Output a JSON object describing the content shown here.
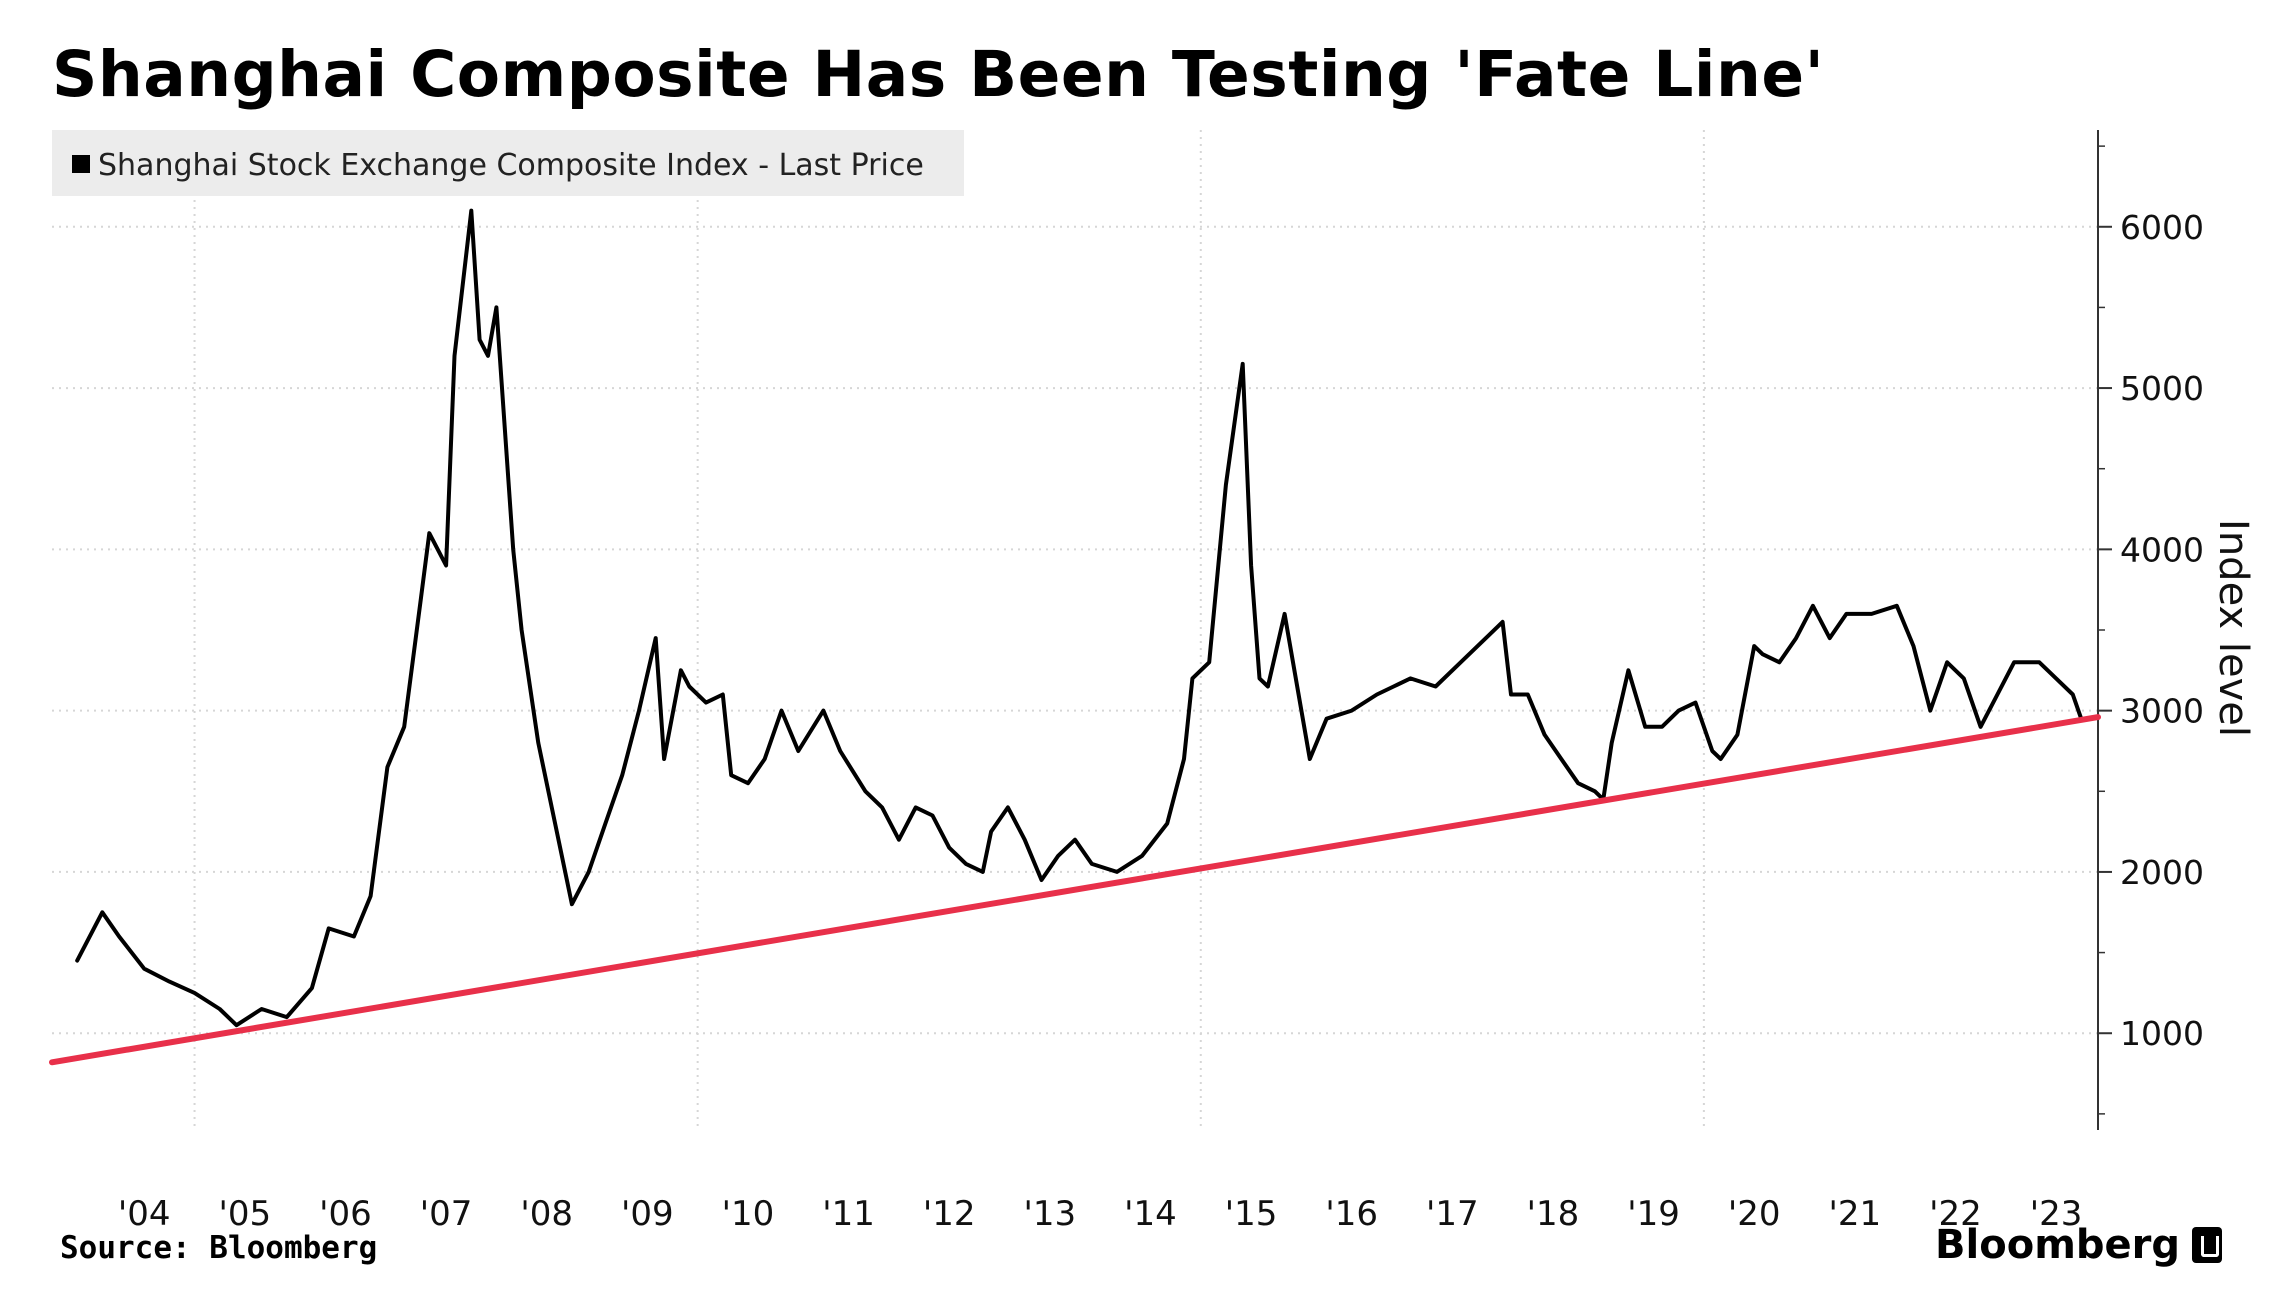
{
  "title": "Shanghai Composite Has Been Testing 'Fate Line'",
  "source": "Source: Bloomberg",
  "brand": "Bloomberg",
  "chart_data": {
    "type": "line",
    "title": "Shanghai Composite Has Been Testing 'Fate Line'",
    "ylabel": "Index level",
    "xlabel": "",
    "ylim": [
      400,
      6600
    ],
    "yticks": [
      1000,
      2000,
      3000,
      4000,
      5000,
      6000
    ],
    "xticks": [
      "'04",
      "'05",
      "'06",
      "'07",
      "'08",
      "'09",
      "'10",
      "'11",
      "'12",
      "'13",
      "'14",
      "'15",
      "'16",
      "'17",
      "'18",
      "'19",
      "'20",
      "'21",
      "'22",
      "'23"
    ],
    "legend": {
      "placement": "top-left",
      "entries": [
        "Shanghai Stock Exchange Composite Index - Last Price"
      ]
    },
    "grid": true,
    "series": [
      {
        "name": "Shanghai Stock Exchange Composite Index - Last Price",
        "color": "#000000",
        "x": [
          "2003-11",
          "2004-02",
          "2004-04",
          "2004-07",
          "2004-10",
          "2005-01",
          "2005-04",
          "2005-06",
          "2005-09",
          "2005-12",
          "2006-03",
          "2006-05",
          "2006-08",
          "2006-10",
          "2006-12",
          "2007-02",
          "2007-04",
          "2007-05",
          "2007-07",
          "2007-08",
          "2007-10",
          "2007-11",
          "2007-12",
          "2008-01",
          "2008-03",
          "2008-04",
          "2008-06",
          "2008-08",
          "2008-10",
          "2008-12",
          "2009-02",
          "2009-04",
          "2009-06",
          "2009-08",
          "2009-09",
          "2009-11",
          "2009-12",
          "2010-02",
          "2010-04",
          "2010-05",
          "2010-07",
          "2010-09",
          "2010-11",
          "2011-01",
          "2011-04",
          "2011-06",
          "2011-09",
          "2011-11",
          "2012-01",
          "2012-03",
          "2012-05",
          "2012-07",
          "2012-09",
          "2012-11",
          "2012-12",
          "2013-02",
          "2013-04",
          "2013-06",
          "2013-08",
          "2013-10",
          "2013-12",
          "2014-03",
          "2014-06",
          "2014-09",
          "2014-11",
          "2014-12",
          "2015-02",
          "2015-04",
          "2015-06",
          "2015-07",
          "2015-08",
          "2015-09",
          "2015-11",
          "2016-01",
          "2016-02",
          "2016-04",
          "2016-07",
          "2016-10",
          "2016-12",
          "2017-02",
          "2017-05",
          "2017-08",
          "2017-11",
          "2018-01",
          "2018-02",
          "2018-04",
          "2018-06",
          "2018-08",
          "2018-10",
          "2018-12",
          "2019-01",
          "2019-02",
          "2019-04",
          "2019-06",
          "2019-08",
          "2019-10",
          "2019-12",
          "2020-02",
          "2020-03",
          "2020-05",
          "2020-07",
          "2020-08",
          "2020-10",
          "2020-12",
          "2021-02",
          "2021-04",
          "2021-06",
          "2021-09",
          "2021-12",
          "2022-02",
          "2022-04",
          "2022-06",
          "2022-08",
          "2022-10",
          "2022-12",
          "2023-02",
          "2023-05",
          "2023-07",
          "2023-09",
          "2023-10"
        ],
        "values": [
          1450,
          1750,
          1600,
          1400,
          1320,
          1250,
          1150,
          1050,
          1150,
          1100,
          1280,
          1650,
          1600,
          1850,
          2650,
          2900,
          3700,
          4100,
          3900,
          5200,
          6100,
          5300,
          5200,
          5500,
          4000,
          3500,
          2800,
          2300,
          1800,
          2000,
          2300,
          2600,
          3000,
          3450,
          2700,
          3250,
          3150,
          3050,
          3100,
          2600,
          2550,
          2700,
          3000,
          2750,
          3000,
          2750,
          2500,
          2400,
          2200,
          2400,
          2350,
          2150,
          2050,
          2000,
          2250,
          2400,
          2200,
          1950,
          2100,
          2200,
          2050,
          2000,
          2100,
          2300,
          2700,
          3200,
          3300,
          4400,
          5150,
          3900,
          3200,
          3150,
          3600,
          3000,
          2700,
          2950,
          3000,
          3100,
          3150,
          3200,
          3150,
          3300,
          3450,
          3550,
          3100,
          3100,
          2850,
          2700,
          2550,
          2500,
          2450,
          2800,
          3250,
          2900,
          2900,
          3000,
          3050,
          2750,
          2700,
          2850,
          3400,
          3350,
          3300,
          3450,
          3650,
          3450,
          3600,
          3600,
          3650,
          3400,
          3000,
          3300,
          3200,
          2900,
          3100,
          3300,
          3300,
          3200,
          3100,
          2950
        ]
      },
      {
        "name": "Fate Line",
        "color": "#e8304a",
        "x": [
          "2003-08",
          "2023-12"
        ],
        "values": [
          820,
          2960
        ]
      }
    ]
  }
}
